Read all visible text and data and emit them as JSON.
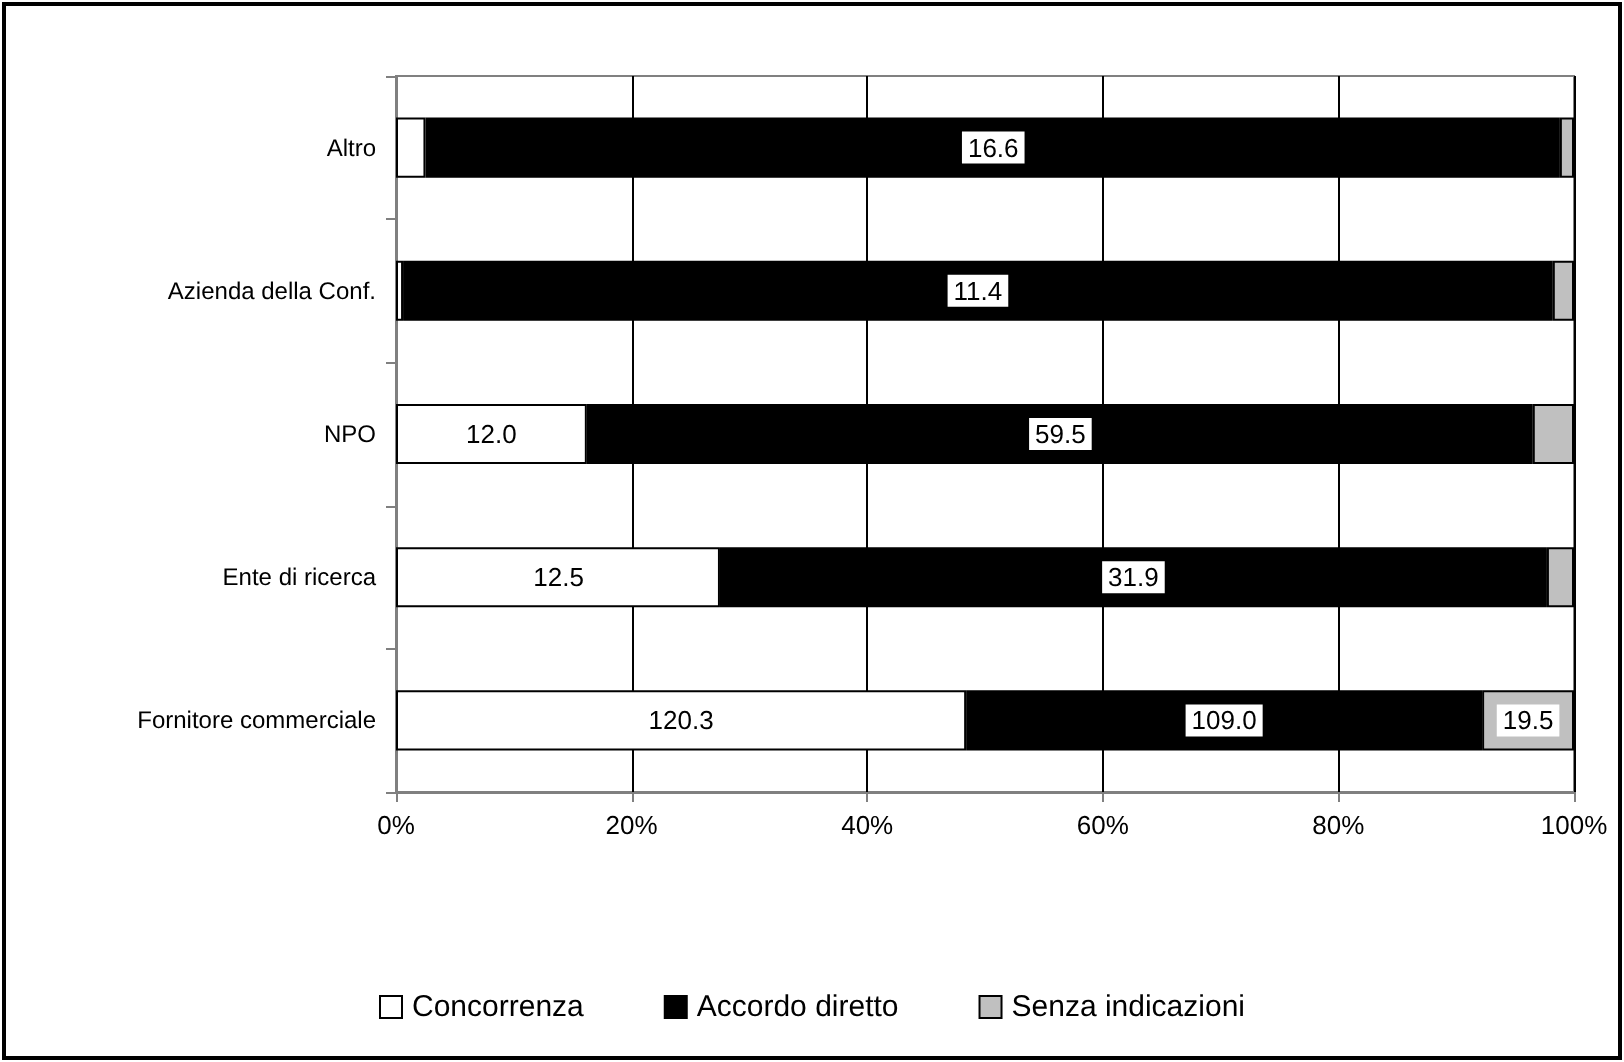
{
  "chart_data": {
    "type": "bar",
    "orientation": "horizontal",
    "stacked": true,
    "categories": [
      "Altro",
      "Azienda della Conf.",
      "NPO",
      "Ente di ricerca",
      "Fornitore commerciale"
    ],
    "series": [
      {
        "name": "Concorrenza",
        "color": "#ffffff",
        "values": [
          2.5,
          0.6,
          16.2,
          27.5,
          48.4
        ]
      },
      {
        "name": "Accordo diretto",
        "color": "#000000",
        "values": [
          96.3,
          97.6,
          80.3,
          70.2,
          43.8
        ]
      },
      {
        "name": "Senza indicazioni",
        "color": "#c0c0c0",
        "values": [
          1.2,
          1.8,
          3.5,
          2.3,
          7.8
        ]
      }
    ],
    "annotations": [
      {
        "text": "16.6",
        "x": 50.7,
        "y": "Altro"
      },
      {
        "text": "11.4",
        "x": 49.4,
        "y": "Azienda della Conf."
      },
      {
        "text": "12.0",
        "x": 8.1,
        "y": "NPO"
      },
      {
        "text": "59.5",
        "x": 56.4,
        "y": "NPO"
      },
      {
        "text": "12.5",
        "x": 13.8,
        "y": "Ente di ricerca"
      },
      {
        "text": "31.9",
        "x": 62.6,
        "y": "Ente di ricerca"
      },
      {
        "text": "120.3",
        "x": 24.2,
        "y": "Fornitore commerciale"
      },
      {
        "text": "109.0",
        "x": 70.3,
        "y": "Fornitore commerciale"
      },
      {
        "text": "19.5",
        "x": 96.1,
        "y": "Fornitore commerciale"
      }
    ],
    "xlim": [
      0,
      100
    ],
    "xticks": [
      {
        "value": 0,
        "label": "0%"
      },
      {
        "value": 20,
        "label": "20%"
      },
      {
        "value": 40,
        "label": "40%"
      },
      {
        "value": 60,
        "label": "60%"
      },
      {
        "value": 80,
        "label": "80%"
      },
      {
        "value": 100,
        "label": "100%"
      }
    ],
    "grid": "x",
    "legend": "bottom"
  }
}
